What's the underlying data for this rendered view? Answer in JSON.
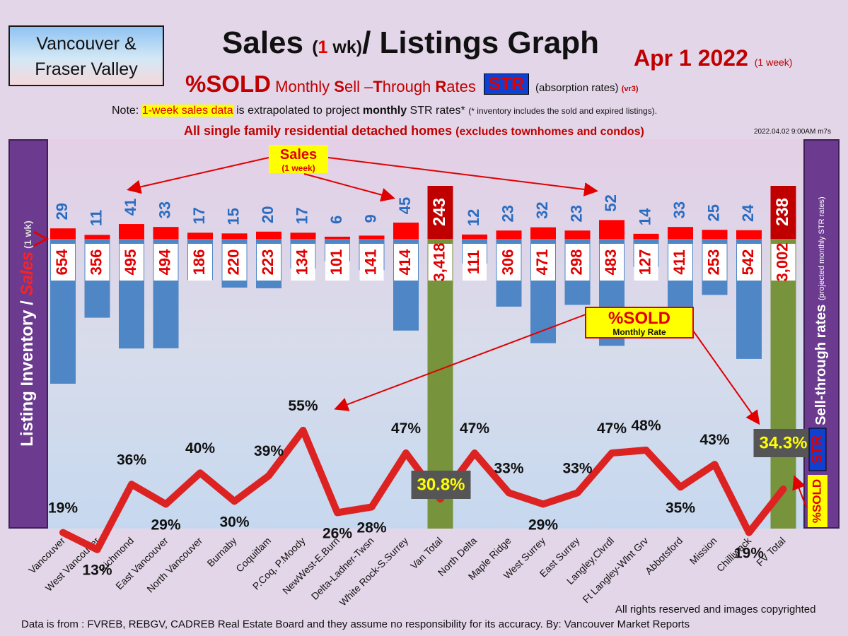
{
  "header": {
    "region_line1": "Vancouver &",
    "region_line2": "Fraser Valley",
    "title_a": "Sales ",
    "title_b": "(",
    "title_c": "1",
    "title_d": " wk)",
    "title_e": "/ Listings Graph",
    "date": "Apr 1  2022",
    "date_sub": "(1 week)",
    "sub_pct": "%SOLD",
    "sub_m1": " Monthly ",
    "sub_s": "S",
    "sub_m2": "ell –",
    "sub_t": "T",
    "sub_m3": "hrough ",
    "sub_r": "R",
    "sub_m4": "ates",
    "str_badge": "STR",
    "absorb": "(absorption rates) ",
    "absorb_vr": "(vr3)",
    "note_a": "Note: ",
    "note_hl": "1-week sales data",
    "note_b": " is extrapolated to project ",
    "note_bold": "monthly",
    "note_c": " STR rates* ",
    "note_tiny": "(* inventory includes the sold and expired listings).",
    "note2_a": "All single family residential detached homes ",
    "note2_b": "(excludes townhomes and condos)",
    "timestamp": "2022.04.02 9:00AM m7s"
  },
  "chart_data": {
    "type": "bar",
    "title": "Sales (1 wk)/ Listings Graph",
    "ylabel_left_a": "Listing Inventory / ",
    "ylabel_left_b": "Sales",
    "ylabel_left_c": " (1 wk)",
    "ylabel_right_a": "Sell-through rates ",
    "ylabel_right_b": "(projected monthly STR rates)",
    "ylabel_right_badge": "STR",
    "ylabel_right_sold": "%SOLD",
    "categories": [
      "Vancouver",
      "West Vancouver",
      "Richmond",
      "East Vancouver",
      "North Vancouver",
      "Burnaby",
      "Coquitlam",
      "P.Coq, P.Moody",
      "NewWest-E.Burn",
      "Delta-Ladner-Twsn",
      "White Rock-S.Surrey",
      "Van Total",
      "North Delta",
      "Maple Ridge",
      "West Surrey",
      "East Surrey",
      "Langley,Clvrdl",
      "Ft Langley-Wlnt Grv",
      "Abbotsford",
      "Mission",
      "Chilliwack",
      "FV Total"
    ],
    "series": [
      {
        "name": "Sales",
        "values": [
          29,
          11,
          41,
          33,
          17,
          15,
          20,
          17,
          6,
          9,
          45,
          243,
          12,
          23,
          32,
          23,
          52,
          14,
          33,
          25,
          24,
          238
        ]
      },
      {
        "name": "Listing Inventory",
        "values": [
          654,
          356,
          495,
          494,
          186,
          220,
          223,
          134,
          101,
          141,
          414,
          3418,
          111,
          306,
          471,
          298,
          483,
          127,
          411,
          253,
          542,
          3002
        ]
      },
      {
        "name": "%SOLD",
        "values": [
          19,
          13,
          36,
          29,
          40,
          30,
          39,
          55,
          26,
          28,
          47,
          30.8,
          47,
          33,
          29,
          33,
          47,
          48,
          35,
          43,
          19,
          34.3
        ]
      }
    ],
    "pct_labels": [
      "19%",
      "13%",
      "36%",
      "29%",
      "40%",
      "30%",
      "39%",
      "55%",
      "26%",
      "28%",
      "47%",
      "30.8%",
      "47%",
      "33%",
      "29%",
      "33%",
      "47%",
      "48%",
      "35%",
      "43%",
      "19%",
      "34.3%"
    ],
    "totals_index": [
      11,
      21
    ],
    "annotations": {
      "sales_label": "Sales",
      "sales_sub": "(1 week)",
      "sold_label": "%SOLD",
      "sold_sub": "Monthly Rate"
    },
    "colors": {
      "sales": "#ff0000",
      "inventory": "#4f86c6",
      "total_bar": "#77933c",
      "total_sales": "#c00000",
      "line": "#dd2222",
      "panel": "#6c3b8f"
    }
  },
  "footer": {
    "rights": "All rights reserved and  images copyrighted",
    "source": "Data is from : FVREB, REBGV, CADREB Real Estate Board and they assume no responsibility for its accuracy. By: Vancouver Market Reports"
  }
}
